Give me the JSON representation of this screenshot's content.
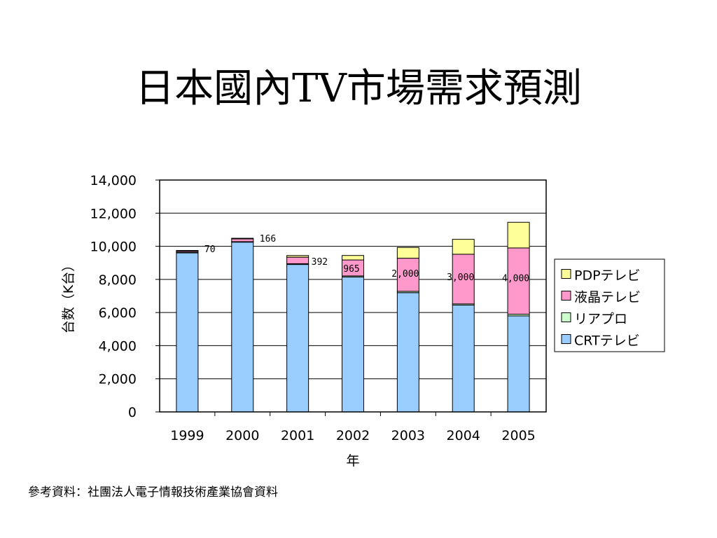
{
  "title": "日本國內TV市場需求預測",
  "source_note": "參考資料：社團法人電子情報技術產業協會資料",
  "chart_data": {
    "type": "bar",
    "stacked": true,
    "categories": [
      "1999",
      "2000",
      "2001",
      "2002",
      "2003",
      "2004",
      "2005"
    ],
    "series": [
      {
        "name": "CRTテレビ",
        "color": "#99ccff",
        "values": [
          9600,
          10250,
          8900,
          8150,
          7200,
          6450,
          5800
        ]
      },
      {
        "name": "リアプロ",
        "color": "#ccffcc",
        "values": [
          50,
          30,
          50,
          60,
          80,
          70,
          100
        ]
      },
      {
        "name": "液晶テレビ",
        "color": "#ff99cc",
        "values": [
          70,
          166,
          392,
          965,
          2000,
          3000,
          4000
        ]
      },
      {
        "name": "PDPテレビ",
        "color": "#ffff99",
        "values": [
          30,
          40,
          100,
          270,
          650,
          900,
          1550
        ]
      }
    ],
    "data_labels": [
      "70",
      "166",
      "392",
      "965",
      "2,000",
      "3,000",
      "4,000"
    ],
    "xlabel": "年",
    "ylabel": "台数（K台）",
    "ylim": [
      0,
      14000
    ],
    "yticks": [
      "0",
      "2,000",
      "4,000",
      "6,000",
      "8,000",
      "10,000",
      "12,000",
      "14,000"
    ],
    "ytick_values": [
      0,
      2000,
      4000,
      6000,
      8000,
      10000,
      12000,
      14000
    ],
    "grid": true,
    "legend_position": "right",
    "legend_order": [
      "PDPテレビ",
      "液晶テレビ",
      "リアプロ",
      "CRTテレビ"
    ]
  }
}
